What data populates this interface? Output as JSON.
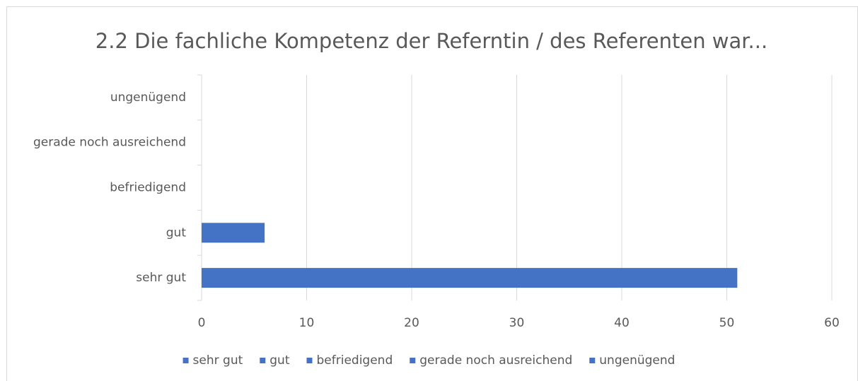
{
  "chart_data": {
    "type": "hbar",
    "title": "2.2 Die fachliche Kompetenz der Referntin / des Referenten war...",
    "categories": [
      "sehr gut",
      "gut",
      "befriedigend",
      "gerade noch ausreichend",
      "ungenügend"
    ],
    "values": [
      51,
      6,
      0,
      0,
      0
    ],
    "color": "#4472c4",
    "xlim": [
      0,
      60
    ],
    "xticks": [
      0,
      10,
      20,
      30,
      40,
      50,
      60
    ],
    "grid": true,
    "legend": "bottom"
  }
}
